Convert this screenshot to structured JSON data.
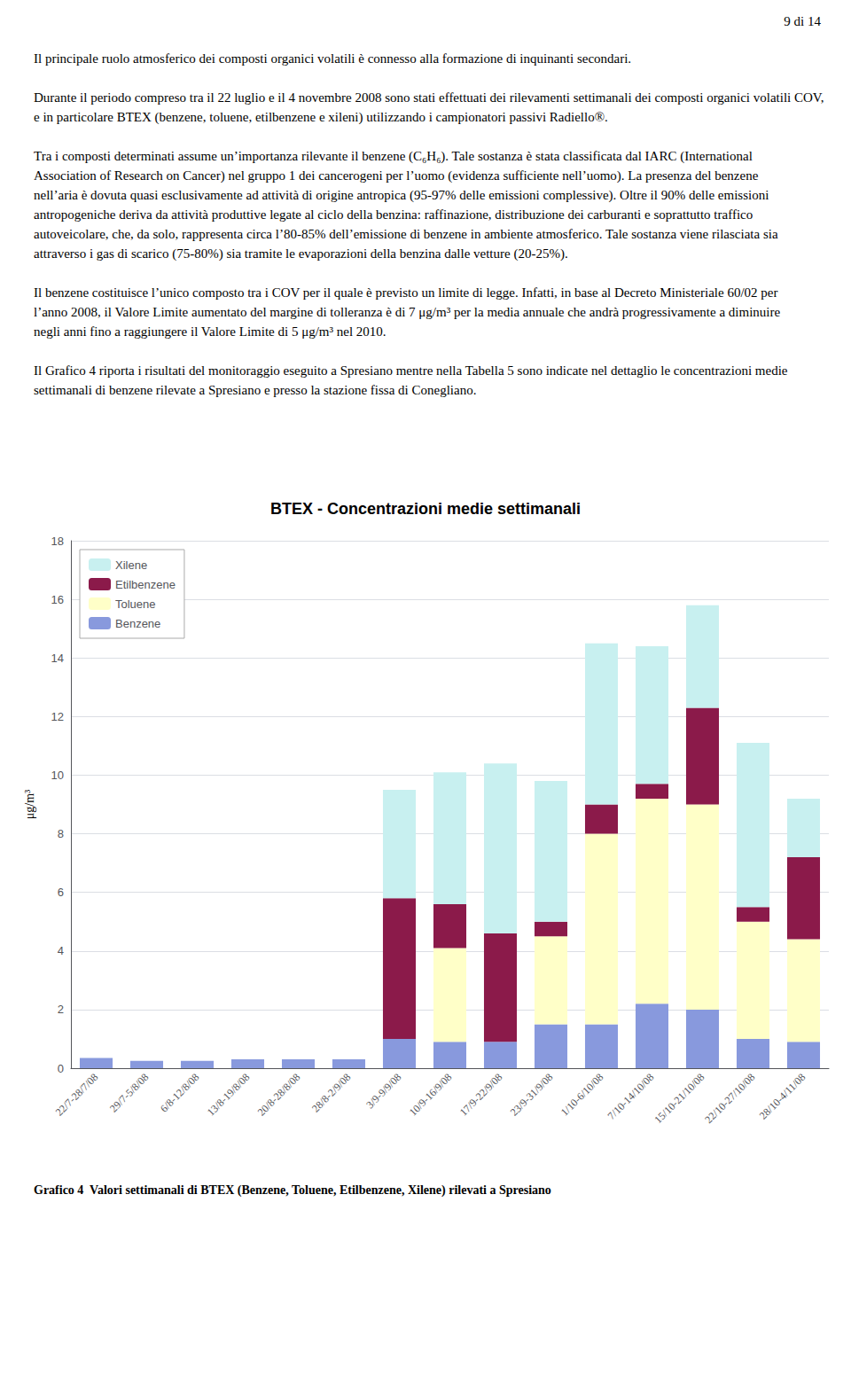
{
  "chart_data": {
    "type": "bar",
    "title": "BTEX - Concentrazioni medie settimanali",
    "ylabel": "μg/m³",
    "categories": [
      "22/7-28/7/08",
      "29/7-5/8/08",
      "6/8-12/8/08",
      "13/8-19/8/08",
      "20/8-28/8/08",
      "28/8-2/9/08",
      "3/9-9/9/08",
      "10/9-16/9/08",
      "17/9-22/9/08",
      "23/9-31/9/08",
      "1/10-6/10/08",
      "7/10-14/10/08",
      "15/10-21/10/08",
      "22/10-27/10/08",
      "28/10-4/11/08"
    ],
    "series": [
      {
        "name": "Benzene",
        "color": "#8899dd",
        "values": [
          0.35,
          0.25,
          0.25,
          0.3,
          0.3,
          0.3,
          1.0,
          0.9,
          0.9,
          1.5,
          1.5,
          2.2,
          2.0,
          1.0,
          0.9
        ]
      },
      {
        "name": "Toluene",
        "color": "#ffffc8",
        "values": [
          0.0,
          0.0,
          0.0,
          0.0,
          0.0,
          0.0,
          0.0,
          3.2,
          0.0,
          3.0,
          6.5,
          7.0,
          7.0,
          4.0,
          3.5
        ]
      },
      {
        "name": "Etilbenzene",
        "color": "#8b1a4a",
        "values": [
          0.0,
          0.0,
          0.0,
          0.0,
          0.0,
          0.0,
          4.8,
          1.5,
          3.7,
          0.5,
          1.0,
          0.5,
          3.3,
          0.5,
          2.8
        ]
      },
      {
        "name": "Xilene",
        "color": "#c8f0f0",
        "values": [
          0.0,
          0.0,
          0.0,
          0.0,
          0.0,
          0.0,
          3.7,
          4.5,
          5.8,
          4.8,
          5.5,
          4.7,
          3.5,
          5.6,
          2.0
        ]
      }
    ],
    "ylim": [
      0,
      18
    ],
    "yticks": [
      0,
      2,
      4,
      6,
      8,
      10,
      12,
      14,
      16,
      18
    ],
    "grid": true,
    "stacked": true,
    "legend": "upper left",
    "annotations": [
      "9 di 14",
      "Il principale ruolo atmosferico dei composti organici volatili è connesso alla formazione di inquinanti secondari.",
      "Durante il periodo compreso tra il 22 luglio e il 4 novembre 2008 sono stati effettuati dei rilevamenti settimanali dei composti organici volatili COV, e in particolare BTEX (benzene, toluene, etilbenzene e xileni) utilizzando i campionatori passivi Radiello®.",
      "Tra i composti determinati assume un’importanza rilevante il benzene (C₆H₆). Tale sostanza è stata classificata dal IARC (International Association of Research on Cancer) nel gruppo 1 dei cancerogeni per l’uomo (evidenza sufficiente nell’uomo). La presenza del benzene nell’aria è dovuta quasi esclusivamente ad attività di origine antropica (95-97% delle emissioni complessive). Oltre il 90% delle emissioni antropogeniche deriva da attività produttive legate al ciclo della benzina: raffinazione, distribuzione dei carburanti e soprattutto traffico autoveicolare, che, da solo, rappresenta circa l’80-85% dell’emissione di benzene in ambiente atmosferico. Tale sostanza viene rilasciata sia attraverso i gas di scarico (75-80%) sia tramite le evaporazioni della benzina dalle vetture (20-25%).",
      "Il benzene costituisce l’unico composto tra i COV per il quale è previsto un limite di legge. Infatti, in base al Decreto Ministeriale 60/02 per l’anno 2008, il Valore Limite aumentato del margine di tolleranza è di 7 μg/m³ per la media annuale che andrà progressivamente a diminuire negli anni fino a raggiungere il Valore Limite di 5 μg/m³ nel 2010.",
      "Il Grafico 4 riporta i risultati del monitoraggio eseguito a Spresiano mentre nella Tabella 5 sono indicate nel dettaglio le concentrazioni medie settimanali di benzene rilevate a Spresiano e presso la stazione fissa di Conegliano.",
      "Grafico 4  Valori settimanali di BTEX (Benzene, Toluene, Etilbenzene, Xilene) rilevati a Spresiano"
    ]
  }
}
